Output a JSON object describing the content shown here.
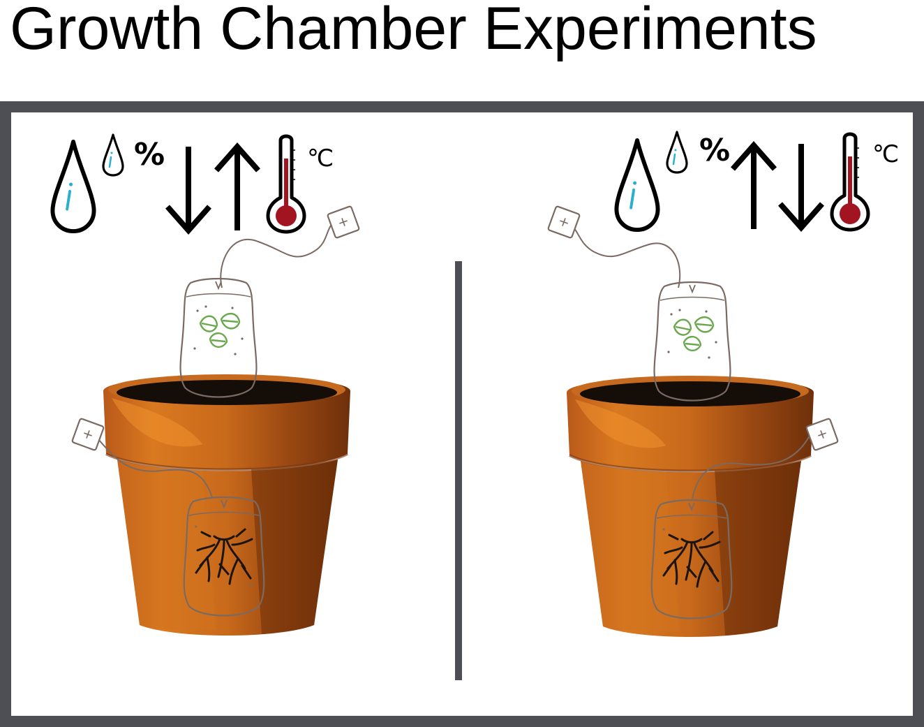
{
  "title": "Growth Chamber Experiments",
  "panels": [
    {
      "name": "left",
      "humidity_change": "down",
      "temperature_change": "up",
      "percent_symbol": "%",
      "degree_symbol": "℃",
      "icons": [
        "large-water-drop-icon",
        "small-water-drop-icon",
        "percent-icon",
        "down-arrow-icon",
        "up-arrow-icon",
        "thermometer-icon",
        "celsius-icon"
      ]
    },
    {
      "name": "right",
      "humidity_change": "up",
      "temperature_change": "down",
      "percent_symbol": "%",
      "degree_symbol": "℃",
      "icons": [
        "large-water-drop-icon",
        "small-water-drop-icon",
        "percent-icon",
        "up-arrow-icon",
        "down-arrow-icon",
        "thermometer-icon",
        "celsius-icon"
      ]
    }
  ],
  "colors": {
    "frame": "#4d4f55",
    "divider": "#4d4f55",
    "pot_light": "#e08425",
    "pot_mid": "#c76a1c",
    "pot_dark": "#8a3f0c",
    "soil": "#1a1009",
    "water_accent": "#2ab0cf",
    "thermo_red": "#a31421",
    "leaf_green": "#6aa84f",
    "bag_stroke": "#7a6a62",
    "root": "#1b1410"
  }
}
